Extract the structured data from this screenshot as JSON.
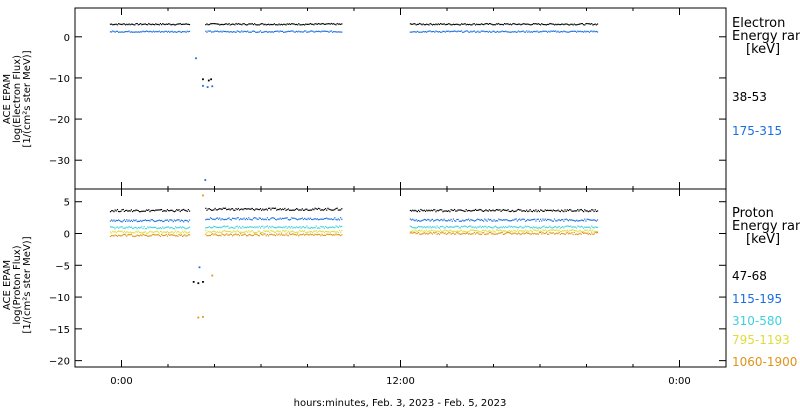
{
  "chart_data": [
    {
      "type": "scatter",
      "ylabel": [
        "ACE EPAM",
        "log(Electron Flux)",
        "[1/(cm²s ster MeV)]"
      ],
      "ylim": [
        -37,
        7
      ],
      "yticks": [
        0,
        -10,
        -20,
        -30
      ],
      "legend_title": [
        "Electron",
        "Energy ranges",
        "[keV]"
      ],
      "series": [
        {
          "name": "38-53",
          "color": "#000000",
          "segments": [
            [
              -0.5,
              2.9,
              3.2
            ],
            [
              3.6,
              9.5,
              3.2
            ],
            [
              12.4,
              20.5,
              3.2
            ]
          ],
          "isolated": [
            [
              3.5,
              -10.3
            ],
            [
              3.75,
              -10.6
            ],
            [
              3.85,
              -10.3
            ]
          ]
        },
        {
          "name": "175-315",
          "color": "#1a6ee0",
          "segments": [
            [
              -0.5,
              2.9,
              1.4
            ],
            [
              3.6,
              9.5,
              1.4
            ],
            [
              12.4,
              20.5,
              1.4
            ]
          ],
          "isolated": [
            [
              3.2,
              -5.2
            ],
            [
              3.5,
              -11.9
            ],
            [
              3.7,
              -12.2
            ],
            [
              3.9,
              -12.0
            ],
            [
              3.6,
              -34.8
            ]
          ]
        }
      ]
    },
    {
      "type": "scatter",
      "xlabel": "hours:minutes, Feb.  3, 2023 - Feb.  5, 2023",
      "ylabel": [
        "ACE EPAM",
        "log(Proton Flux)",
        "[1/(cm²s ster MeV)]"
      ],
      "ylim": [
        -21,
        7
      ],
      "yticks": [
        5,
        0,
        -5,
        -10,
        -15,
        -20
      ],
      "xlim": [
        -2,
        26
      ],
      "xticks": [
        {
          "value": 0,
          "label": "0:00"
        },
        {
          "value": 12,
          "label": "12:00"
        },
        {
          "value": 24,
          "label": "0:00"
        }
      ],
      "legend_title": [
        "Proton",
        "Energy ranges",
        "[keV]"
      ],
      "series": [
        {
          "name": "47-68",
          "color": "#000000",
          "segments": [
            [
              -0.5,
              2.9,
              3.7
            ],
            [
              3.6,
              9.5,
              3.9
            ],
            [
              12.4,
              20.5,
              3.7
            ]
          ],
          "isolated": [
            [
              3.1,
              -7.6
            ],
            [
              3.3,
              -7.8
            ],
            [
              3.5,
              -7.6
            ]
          ]
        },
        {
          "name": "115-195",
          "color": "#1a6ee0",
          "segments": [
            [
              -0.5,
              2.9,
              2.1
            ],
            [
              3.6,
              9.5,
              2.4
            ],
            [
              12.4,
              20.5,
              2.2
            ]
          ],
          "isolated": [
            [
              3.35,
              -5.3
            ]
          ]
        },
        {
          "name": "310-580",
          "color": "#3ed0e0",
          "segments": [
            [
              -0.5,
              2.9,
              1.0
            ],
            [
              3.6,
              9.5,
              1.1
            ],
            [
              12.4,
              20.5,
              1.1
            ]
          ],
          "isolated": []
        },
        {
          "name": "795-1193",
          "color": "#e0dc3a",
          "segments": [
            [
              -0.5,
              2.9,
              0.3
            ],
            [
              3.6,
              9.5,
              0.4
            ],
            [
              12.4,
              20.5,
              0.5
            ]
          ],
          "isolated": []
        },
        {
          "name": "1060-1900",
          "color": "#e09318",
          "segments": [
            [
              -0.5,
              2.9,
              -0.2
            ],
            [
              3.6,
              9.5,
              -0.1
            ],
            [
              12.4,
              20.5,
              0.1
            ]
          ],
          "isolated": [
            [
              3.3,
              -13.2
            ],
            [
              3.5,
              -13.1
            ],
            [
              3.9,
              -6.6
            ],
            [
              3.5,
              6.0
            ]
          ]
        }
      ]
    }
  ]
}
